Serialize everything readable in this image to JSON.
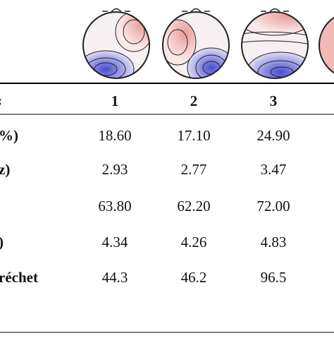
{
  "table": {
    "header": [
      "s",
      "1",
      "2",
      "3"
    ],
    "rows": [
      {
        "label": "%)",
        "cells": [
          "18.60",
          "17.10",
          "24.90"
        ]
      },
      {
        "label": "z)",
        "cells": [
          "2.93",
          "2.77",
          "3.47"
        ]
      },
      {
        "cells": [
          "63.80",
          "62.20",
          "72.00"
        ]
      },
      {
        "label": ")",
        "cells": [
          "4.34",
          "4.26",
          "4.83"
        ]
      },
      {
        "label": "réchet",
        "cells": [
          "44.3",
          "46.2",
          "96.5"
        ]
      }
    ]
  }
}
